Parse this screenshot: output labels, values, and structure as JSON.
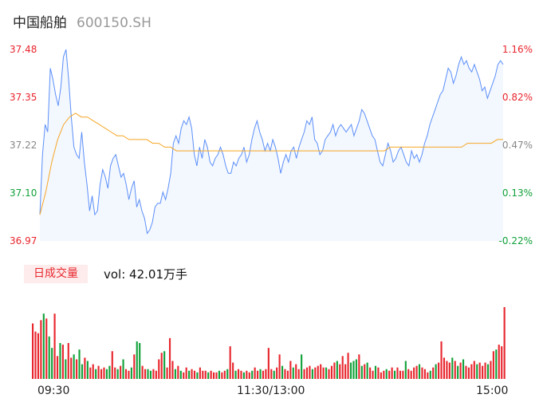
{
  "header": {
    "name": "中国船舶",
    "code": "600150.SH"
  },
  "chart_data": [
    {
      "type": "line",
      "prev_close": 37.08,
      "y_ticks": [
        "37.48",
        "37.35",
        "37.22",
        "37.10",
        "36.97"
      ],
      "y_pct_ticks": [
        "1.16%",
        "0.82%",
        "0.47%",
        "0.13%",
        "-0.22%"
      ],
      "ylim": [
        36.97,
        37.48
      ],
      "x_ticks": [
        "09:30",
        "11:30/13:00",
        "15:00"
      ],
      "series": [
        {
          "color": "#5b8ff9",
          "values": [
            37.04,
            37.2,
            37.28,
            37.26,
            37.43,
            37.4,
            37.36,
            37.33,
            37.38,
            37.46,
            37.48,
            37.4,
            37.3,
            37.22,
            37.2,
            37.19,
            37.26,
            37.18,
            37.12,
            37.05,
            37.09,
            37.04,
            37.05,
            37.12,
            37.16,
            37.14,
            37.11,
            37.17,
            37.19,
            37.2,
            37.17,
            37.14,
            37.15,
            37.12,
            37.08,
            37.11,
            37.13,
            37.06,
            37.08,
            37.05,
            37.03,
            36.99,
            37.0,
            37.02,
            37.06,
            37.07,
            37.07,
            37.1,
            37.08,
            37.11,
            37.15,
            37.23,
            37.25,
            37.23,
            37.27,
            37.29,
            37.28,
            37.3,
            37.27,
            37.2,
            37.17,
            37.22,
            37.19,
            37.24,
            37.22,
            37.18,
            37.17,
            37.19,
            37.2,
            37.22,
            37.2,
            37.17,
            37.15,
            37.15,
            37.18,
            37.17,
            37.19,
            37.2,
            37.22,
            37.18,
            37.2,
            37.24,
            37.27,
            37.29,
            37.26,
            37.24,
            37.21,
            37.23,
            37.21,
            37.24,
            37.22,
            37.19,
            37.15,
            37.18,
            37.2,
            37.18,
            37.21,
            37.22,
            37.19,
            37.22,
            37.24,
            37.26,
            37.29,
            37.28,
            37.3,
            37.24,
            37.23,
            37.2,
            37.21,
            37.24,
            37.25,
            37.26,
            37.28,
            37.25,
            37.27,
            37.28,
            37.27,
            37.26,
            37.27,
            37.28,
            37.25,
            37.27,
            37.29,
            37.32,
            37.31,
            37.29,
            37.27,
            37.25,
            37.24,
            37.21,
            37.18,
            37.17,
            37.2,
            37.23,
            37.21,
            37.18,
            37.19,
            37.21,
            37.22,
            37.2,
            37.18,
            37.17,
            37.21,
            37.19,
            37.2,
            37.18,
            37.2,
            37.23,
            37.25,
            37.28,
            37.3,
            37.32,
            37.34,
            37.36,
            37.37,
            37.4,
            37.43,
            37.42,
            37.39,
            37.41,
            37.44,
            37.46,
            37.44,
            37.45,
            37.43,
            37.42,
            37.44,
            37.42,
            37.4,
            37.37,
            37.38,
            37.35,
            37.37,
            37.39,
            37.41,
            37.44,
            37.45,
            37.44
          ]
        },
        {
          "color": "#f5a623",
          "values": [
            37.04,
            37.1,
            37.18,
            37.24,
            37.28,
            37.3,
            37.31,
            37.3,
            37.3,
            37.29,
            37.28,
            37.27,
            37.26,
            37.25,
            37.25,
            37.24,
            37.24,
            37.24,
            37.24,
            37.23,
            37.23,
            37.22,
            37.22,
            37.21,
            37.21,
            37.21,
            37.21,
            37.21,
            37.21,
            37.21,
            37.21,
            37.21,
            37.21,
            37.21,
            37.21,
            37.21,
            37.21,
            37.21,
            37.21,
            37.21,
            37.21,
            37.21,
            37.21,
            37.21,
            37.21,
            37.21,
            37.21,
            37.21,
            37.21,
            37.21,
            37.21,
            37.21,
            37.21,
            37.21,
            37.21,
            37.21,
            37.21,
            37.21,
            37.21,
            37.22,
            37.22,
            37.22,
            37.22,
            37.22,
            37.22,
            37.22,
            37.22,
            37.22,
            37.22,
            37.22,
            37.22,
            37.22,
            37.23,
            37.23,
            37.23,
            37.23,
            37.23,
            37.24,
            37.24
          ]
        }
      ]
    },
    {
      "type": "bar",
      "badge": "日成交量",
      "summary": "vol: 42.01万手",
      "up_color": "#e8262e",
      "down_color": "#12a13a",
      "values": [
        {
          "v": 68,
          "d": "up"
        },
        {
          "v": 58,
          "d": "up"
        },
        {
          "v": 56,
          "d": "up"
        },
        {
          "v": 72,
          "d": "up"
        },
        {
          "v": 80,
          "d": "down"
        },
        {
          "v": 74,
          "d": "up"
        },
        {
          "v": 52,
          "d": "down"
        },
        {
          "v": 38,
          "d": "down"
        },
        {
          "v": 80,
          "d": "up"
        },
        {
          "v": 28,
          "d": "up"
        },
        {
          "v": 44,
          "d": "down"
        },
        {
          "v": 42,
          "d": "up"
        },
        {
          "v": 24,
          "d": "down"
        },
        {
          "v": 44,
          "d": "up"
        },
        {
          "v": 26,
          "d": "up"
        },
        {
          "v": 30,
          "d": "down"
        },
        {
          "v": 24,
          "d": "up"
        },
        {
          "v": 36,
          "d": "down"
        },
        {
          "v": 18,
          "d": "down"
        },
        {
          "v": 26,
          "d": "up"
        },
        {
          "v": 22,
          "d": "down"
        },
        {
          "v": 14,
          "d": "up"
        },
        {
          "v": 18,
          "d": "up"
        },
        {
          "v": 12,
          "d": "down"
        },
        {
          "v": 16,
          "d": "up"
        },
        {
          "v": 12,
          "d": "up"
        },
        {
          "v": 14,
          "d": "up"
        },
        {
          "v": 12,
          "d": "down"
        },
        {
          "v": 16,
          "d": "down"
        },
        {
          "v": 34,
          "d": "up"
        },
        {
          "v": 14,
          "d": "up"
        },
        {
          "v": 12,
          "d": "down"
        },
        {
          "v": 16,
          "d": "up"
        },
        {
          "v": 24,
          "d": "down"
        },
        {
          "v": 12,
          "d": "up"
        },
        {
          "v": 10,
          "d": "up"
        },
        {
          "v": 14,
          "d": "down"
        },
        {
          "v": 30,
          "d": "up"
        },
        {
          "v": 46,
          "d": "down"
        },
        {
          "v": 44,
          "d": "down"
        },
        {
          "v": 16,
          "d": "up"
        },
        {
          "v": 12,
          "d": "up"
        },
        {
          "v": 12,
          "d": "down"
        },
        {
          "v": 10,
          "d": "down"
        },
        {
          "v": 12,
          "d": "up"
        },
        {
          "v": 10,
          "d": "up"
        },
        {
          "v": 24,
          "d": "up"
        },
        {
          "v": 32,
          "d": "up"
        },
        {
          "v": 34,
          "d": "down"
        },
        {
          "v": 14,
          "d": "up"
        },
        {
          "v": 50,
          "d": "up"
        },
        {
          "v": 22,
          "d": "up"
        },
        {
          "v": 12,
          "d": "down"
        },
        {
          "v": 16,
          "d": "up"
        },
        {
          "v": 10,
          "d": "down"
        },
        {
          "v": 8,
          "d": "up"
        },
        {
          "v": 14,
          "d": "up"
        },
        {
          "v": 10,
          "d": "down"
        },
        {
          "v": 12,
          "d": "up"
        },
        {
          "v": 10,
          "d": "up"
        },
        {
          "v": 8,
          "d": "down"
        },
        {
          "v": 14,
          "d": "up"
        },
        {
          "v": 10,
          "d": "up"
        },
        {
          "v": 10,
          "d": "up"
        },
        {
          "v": 8,
          "d": "down"
        },
        {
          "v": 10,
          "d": "up"
        },
        {
          "v": 8,
          "d": "up"
        },
        {
          "v": 8,
          "d": "up"
        },
        {
          "v": 10,
          "d": "down"
        },
        {
          "v": 8,
          "d": "up"
        },
        {
          "v": 10,
          "d": "up"
        },
        {
          "v": 12,
          "d": "down"
        },
        {
          "v": 40,
          "d": "up"
        },
        {
          "v": 20,
          "d": "up"
        },
        {
          "v": 10,
          "d": "down"
        },
        {
          "v": 12,
          "d": "up"
        },
        {
          "v": 10,
          "d": "up"
        },
        {
          "v": 8,
          "d": "down"
        },
        {
          "v": 10,
          "d": "up"
        },
        {
          "v": 8,
          "d": "up"
        },
        {
          "v": 10,
          "d": "down"
        },
        {
          "v": 14,
          "d": "up"
        },
        {
          "v": 10,
          "d": "up"
        },
        {
          "v": 12,
          "d": "down"
        },
        {
          "v": 10,
          "d": "up"
        },
        {
          "v": 12,
          "d": "up"
        },
        {
          "v": 38,
          "d": "up"
        },
        {
          "v": 12,
          "d": "up"
        },
        {
          "v": 10,
          "d": "down"
        },
        {
          "v": 14,
          "d": "up"
        },
        {
          "v": 30,
          "d": "up"
        },
        {
          "v": 16,
          "d": "down"
        },
        {
          "v": 12,
          "d": "up"
        },
        {
          "v": 10,
          "d": "up"
        },
        {
          "v": 22,
          "d": "up"
        },
        {
          "v": 14,
          "d": "down"
        },
        {
          "v": 18,
          "d": "up"
        },
        {
          "v": 12,
          "d": "up"
        },
        {
          "v": 30,
          "d": "down"
        },
        {
          "v": 12,
          "d": "up"
        },
        {
          "v": 14,
          "d": "up"
        },
        {
          "v": 16,
          "d": "up"
        },
        {
          "v": 12,
          "d": "down"
        },
        {
          "v": 14,
          "d": "up"
        },
        {
          "v": 16,
          "d": "up"
        },
        {
          "v": 18,
          "d": "up"
        },
        {
          "v": 14,
          "d": "up"
        },
        {
          "v": 14,
          "d": "down"
        },
        {
          "v": 12,
          "d": "up"
        },
        {
          "v": 16,
          "d": "up"
        },
        {
          "v": 20,
          "d": "up"
        },
        {
          "v": 22,
          "d": "down"
        },
        {
          "v": 18,
          "d": "up"
        },
        {
          "v": 28,
          "d": "up"
        },
        {
          "v": 18,
          "d": "up"
        },
        {
          "v": 32,
          "d": "up"
        },
        {
          "v": 20,
          "d": "down"
        },
        {
          "v": 22,
          "d": "down"
        },
        {
          "v": 24,
          "d": "down"
        },
        {
          "v": 30,
          "d": "up"
        },
        {
          "v": 16,
          "d": "down"
        },
        {
          "v": 18,
          "d": "up"
        },
        {
          "v": 20,
          "d": "down"
        },
        {
          "v": 14,
          "d": "up"
        },
        {
          "v": 10,
          "d": "up"
        },
        {
          "v": 16,
          "d": "down"
        },
        {
          "v": 14,
          "d": "up"
        },
        {
          "v": 8,
          "d": "up"
        },
        {
          "v": 10,
          "d": "up"
        },
        {
          "v": 12,
          "d": "down"
        },
        {
          "v": 10,
          "d": "up"
        },
        {
          "v": 14,
          "d": "up"
        },
        {
          "v": 10,
          "d": "down"
        },
        {
          "v": 14,
          "d": "up"
        },
        {
          "v": 10,
          "d": "up"
        },
        {
          "v": 10,
          "d": "up"
        },
        {
          "v": 22,
          "d": "down"
        },
        {
          "v": 12,
          "d": "up"
        },
        {
          "v": 10,
          "d": "up"
        },
        {
          "v": 14,
          "d": "up"
        },
        {
          "v": 16,
          "d": "up"
        },
        {
          "v": 18,
          "d": "down"
        },
        {
          "v": 14,
          "d": "up"
        },
        {
          "v": 12,
          "d": "up"
        },
        {
          "v": 8,
          "d": "up"
        },
        {
          "v": 10,
          "d": "down"
        },
        {
          "v": 14,
          "d": "up"
        },
        {
          "v": 18,
          "d": "down"
        },
        {
          "v": 20,
          "d": "up"
        },
        {
          "v": 46,
          "d": "up"
        },
        {
          "v": 26,
          "d": "up"
        },
        {
          "v": 22,
          "d": "up"
        },
        {
          "v": 20,
          "d": "up"
        },
        {
          "v": 26,
          "d": "down"
        },
        {
          "v": 22,
          "d": "up"
        },
        {
          "v": 16,
          "d": "down"
        },
        {
          "v": 20,
          "d": "up"
        },
        {
          "v": 24,
          "d": "down"
        },
        {
          "v": 16,
          "d": "up"
        },
        {
          "v": 14,
          "d": "up"
        },
        {
          "v": 18,
          "d": "up"
        },
        {
          "v": 22,
          "d": "up"
        },
        {
          "v": 18,
          "d": "down"
        },
        {
          "v": 20,
          "d": "up"
        },
        {
          "v": 16,
          "d": "up"
        },
        {
          "v": 20,
          "d": "up"
        },
        {
          "v": 18,
          "d": "down"
        },
        {
          "v": 22,
          "d": "up"
        },
        {
          "v": 34,
          "d": "up"
        },
        {
          "v": 36,
          "d": "down"
        },
        {
          "v": 42,
          "d": "up"
        },
        {
          "v": 40,
          "d": "up"
        },
        {
          "v": 88,
          "d": "up"
        }
      ]
    }
  ]
}
